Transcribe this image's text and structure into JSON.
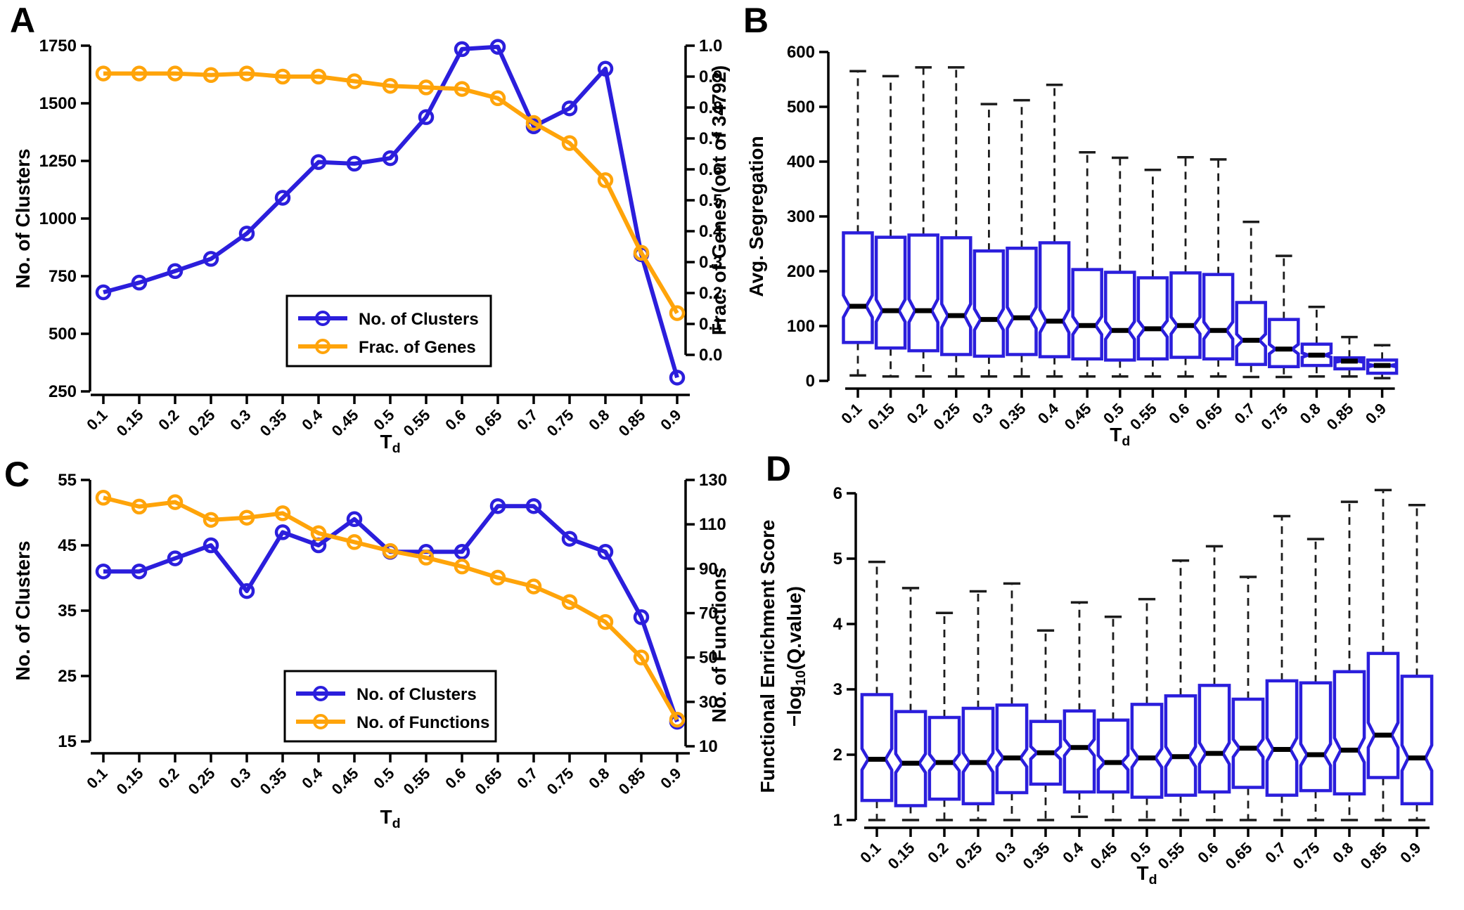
{
  "figure": {
    "panel_labels": [
      "A",
      "B",
      "C",
      "D"
    ],
    "background": "#ffffff"
  },
  "colors": {
    "blue": "#2B1EDC",
    "orange": "#FFA40A",
    "axis": "#000000",
    "whisker": "#1c1c1c",
    "median": "#000000",
    "legend_border": "#000000"
  },
  "x_axis": {
    "label": "T_d",
    "tick_labels": [
      "0.1",
      "0.15",
      "0.2",
      "0.25",
      "0.3",
      "0.35",
      "0.4",
      "0.45",
      "0.5",
      "0.55",
      "0.6",
      "0.65",
      "0.7",
      "0.75",
      "0.8",
      "0.85",
      "0.9"
    ]
  },
  "chart_data": [
    {
      "id": "a",
      "type": "line",
      "xlabel": "T_d",
      "x_tick_labels": [
        "0.1",
        "0.15",
        "0.2",
        "0.25",
        "0.3",
        "0.35",
        "0.4",
        "0.45",
        "0.5",
        "0.55",
        "0.6",
        "0.65",
        "0.7",
        "0.75",
        "0.8",
        "0.85",
        "0.9"
      ],
      "axes": {
        "left": {
          "label": "No. of Clusters",
          "ticks": [
            "250",
            "500",
            "750",
            "1000",
            "1250",
            "1500",
            "1750"
          ],
          "min": 250,
          "max": 1750
        },
        "right": {
          "label": "Frac. of Genes (out of 34792)",
          "ticks": [
            "0.0",
            "0.1",
            "0.2",
            "0.3",
            "0.4",
            "0.5",
            "0.6",
            "0.7",
            "0.8",
            "0.9",
            "1.0"
          ],
          "min": 0,
          "max": 1
        }
      },
      "series": [
        {
          "name": "No. of Clusters",
          "axis": "left",
          "color": "blue",
          "values": [
            680,
            722,
            772,
            825,
            935,
            1090,
            1245,
            1238,
            1262,
            1440,
            1735,
            1745,
            1400,
            1478,
            1650,
            845,
            310
          ]
        },
        {
          "name": "Frac. of Genes",
          "axis": "right",
          "color": "orange",
          "values": [
            0.91,
            0.91,
            0.91,
            0.905,
            0.91,
            0.9,
            0.9,
            0.885,
            0.87,
            0.865,
            0.86,
            0.83,
            0.75,
            0.685,
            0.565,
            0.33,
            0.135
          ]
        }
      ],
      "legend": [
        "No. of Clusters",
        "Frac. of Genes"
      ]
    },
    {
      "id": "b",
      "type": "boxplot",
      "xlabel": "T_d",
      "x_tick_labels": [
        "0.1",
        "0.15",
        "0.2",
        "0.25",
        "0.3",
        "0.35",
        "0.4",
        "0.45",
        "0.5",
        "0.55",
        "0.6",
        "0.65",
        "0.7",
        "0.75",
        "0.8",
        "0.85",
        "0.9"
      ],
      "ylabel_lines": [
        "Avg. Segregation"
      ],
      "y_ticks": [
        "0",
        "100",
        "200",
        "300",
        "400",
        "500",
        "600"
      ],
      "ymin": 0,
      "ymax": 600,
      "boxes": [
        {
          "x": "0.1",
          "low": 10,
          "q1": 70,
          "median": 136,
          "q3": 270,
          "high": 565
        },
        {
          "x": "0.15",
          "low": 8,
          "q1": 60,
          "median": 128,
          "q3": 262,
          "high": 556
        },
        {
          "x": "0.2",
          "low": 8,
          "q1": 55,
          "median": 128,
          "q3": 266,
          "high": 572
        },
        {
          "x": "0.25",
          "low": 8,
          "q1": 48,
          "median": 119,
          "q3": 261,
          "high": 572
        },
        {
          "x": "0.3",
          "low": 8,
          "q1": 45,
          "median": 112,
          "q3": 237,
          "high": 505
        },
        {
          "x": "0.35",
          "low": 8,
          "q1": 48,
          "median": 115,
          "q3": 242,
          "high": 512
        },
        {
          "x": "0.4",
          "low": 8,
          "q1": 44,
          "median": 109,
          "q3": 252,
          "high": 540
        },
        {
          "x": "0.45",
          "low": 8,
          "q1": 40,
          "median": 101,
          "q3": 203,
          "high": 417
        },
        {
          "x": "0.5",
          "low": 8,
          "q1": 38,
          "median": 92,
          "q3": 198,
          "high": 407
        },
        {
          "x": "0.55",
          "low": 8,
          "q1": 40,
          "median": 95,
          "q3": 188,
          "high": 385
        },
        {
          "x": "0.6",
          "low": 8,
          "q1": 43,
          "median": 101,
          "q3": 197,
          "high": 408
        },
        {
          "x": "0.65",
          "low": 8,
          "q1": 40,
          "median": 92,
          "q3": 194,
          "high": 404
        },
        {
          "x": "0.7",
          "low": 7,
          "q1": 30,
          "median": 74,
          "q3": 143,
          "high": 290
        },
        {
          "x": "0.75",
          "low": 7,
          "q1": 26,
          "median": 58,
          "q3": 112,
          "high": 228
        },
        {
          "x": "0.8",
          "low": 8,
          "q1": 28,
          "median": 47,
          "q3": 67,
          "high": 135
        },
        {
          "x": "0.85",
          "low": 8,
          "q1": 22,
          "median": 36,
          "q3": 42,
          "high": 80
        },
        {
          "x": "0.9",
          "low": 5,
          "q1": 14,
          "median": 28,
          "q3": 38,
          "high": 65
        }
      ]
    },
    {
      "id": "c",
      "type": "line",
      "xlabel": "T_d",
      "x_tick_labels": [
        "0.1",
        "0.15",
        "0.2",
        "0.25",
        "0.3",
        "0.35",
        "0.4",
        "0.45",
        "0.5",
        "0.55",
        "0.6",
        "0.65",
        "0.7",
        "0.75",
        "0.8",
        "0.85",
        "0.9"
      ],
      "axes": {
        "left": {
          "label": "No. of Clusters",
          "ticks": [
            "15",
            "25",
            "35",
            "45",
            "55"
          ],
          "min": 15,
          "max": 55
        },
        "right": {
          "label": "No. of Functions",
          "ticks": [
            "10",
            "30",
            "50",
            "70",
            "90",
            "110",
            "130"
          ],
          "min": 10,
          "max": 130
        }
      },
      "series": [
        {
          "name": "No. of Clusters",
          "axis": "left",
          "color": "blue",
          "values": [
            41,
            41,
            43,
            45,
            38,
            47,
            45,
            49,
            44,
            44,
            44,
            51,
            51,
            46,
            44,
            34,
            18
          ]
        },
        {
          "name": "No. of Functions",
          "axis": "right",
          "color": "orange",
          "values": [
            122,
            118,
            120,
            112,
            113,
            115,
            106,
            102,
            98,
            95,
            91,
            86,
            82,
            75,
            66,
            50,
            22
          ]
        }
      ],
      "legend": [
        "No. of Clusters",
        "No. of Functions"
      ]
    },
    {
      "id": "d",
      "type": "boxplot",
      "xlabel": "T_d",
      "x_tick_labels": [
        "0.1",
        "0.15",
        "0.2",
        "0.25",
        "0.3",
        "0.35",
        "0.4",
        "0.45",
        "0.5",
        "0.55",
        "0.6",
        "0.65",
        "0.7",
        "0.75",
        "0.8",
        "0.85",
        "0.9"
      ],
      "ylabel_lines": [
        "Functional Enrichment Score",
        "−log_10_(Q.value)"
      ],
      "y_ticks": [
        "1",
        "2",
        "3",
        "4",
        "5",
        "6"
      ],
      "ymin": 1,
      "ymax": 6,
      "boxes": [
        {
          "x": "0.1",
          "low": 1.0,
          "q1": 1.3,
          "median": 1.93,
          "q3": 2.92,
          "high": 4.95
        },
        {
          "x": "0.15",
          "low": 1.0,
          "q1": 1.22,
          "median": 1.87,
          "q3": 2.66,
          "high": 4.55
        },
        {
          "x": "0.2",
          "low": 1.0,
          "q1": 1.32,
          "median": 1.88,
          "q3": 2.57,
          "high": 4.17
        },
        {
          "x": "0.25",
          "low": 1.0,
          "q1": 1.25,
          "median": 1.88,
          "q3": 2.71,
          "high": 4.5
        },
        {
          "x": "0.3",
          "low": 1.0,
          "q1": 1.42,
          "median": 1.95,
          "q3": 2.76,
          "high": 4.62
        },
        {
          "x": "0.35",
          "low": 1.0,
          "q1": 1.55,
          "median": 2.03,
          "q3": 2.51,
          "high": 3.9
        },
        {
          "x": "0.4",
          "low": 1.05,
          "q1": 1.43,
          "median": 2.11,
          "q3": 2.67,
          "high": 4.33
        },
        {
          "x": "0.45",
          "low": 1.0,
          "q1": 1.43,
          "median": 1.88,
          "q3": 2.53,
          "high": 4.11
        },
        {
          "x": "0.5",
          "low": 1.0,
          "q1": 1.35,
          "median": 1.95,
          "q3": 2.77,
          "high": 4.38
        },
        {
          "x": "0.55",
          "low": 1.0,
          "q1": 1.38,
          "median": 1.97,
          "q3": 2.9,
          "high": 4.97
        },
        {
          "x": "0.6",
          "low": 1.0,
          "q1": 1.43,
          "median": 2.02,
          "q3": 3.06,
          "high": 5.19
        },
        {
          "x": "0.65",
          "low": 1.0,
          "q1": 1.5,
          "median": 2.1,
          "q3": 2.85,
          "high": 4.72
        },
        {
          "x": "0.7",
          "low": 1.0,
          "q1": 1.38,
          "median": 2.08,
          "q3": 3.13,
          "high": 5.65
        },
        {
          "x": "0.75",
          "low": 1.0,
          "q1": 1.45,
          "median": 2.0,
          "q3": 3.1,
          "high": 5.3
        },
        {
          "x": "0.8",
          "low": 1.0,
          "q1": 1.4,
          "median": 2.07,
          "q3": 3.27,
          "high": 5.87
        },
        {
          "x": "0.85",
          "low": 1.0,
          "q1": 1.65,
          "median": 2.3,
          "q3": 3.55,
          "high": 6.05
        },
        {
          "x": "0.9",
          "low": 1.0,
          "q1": 1.25,
          "median": 1.95,
          "q3": 3.2,
          "high": 5.82
        }
      ]
    }
  ]
}
